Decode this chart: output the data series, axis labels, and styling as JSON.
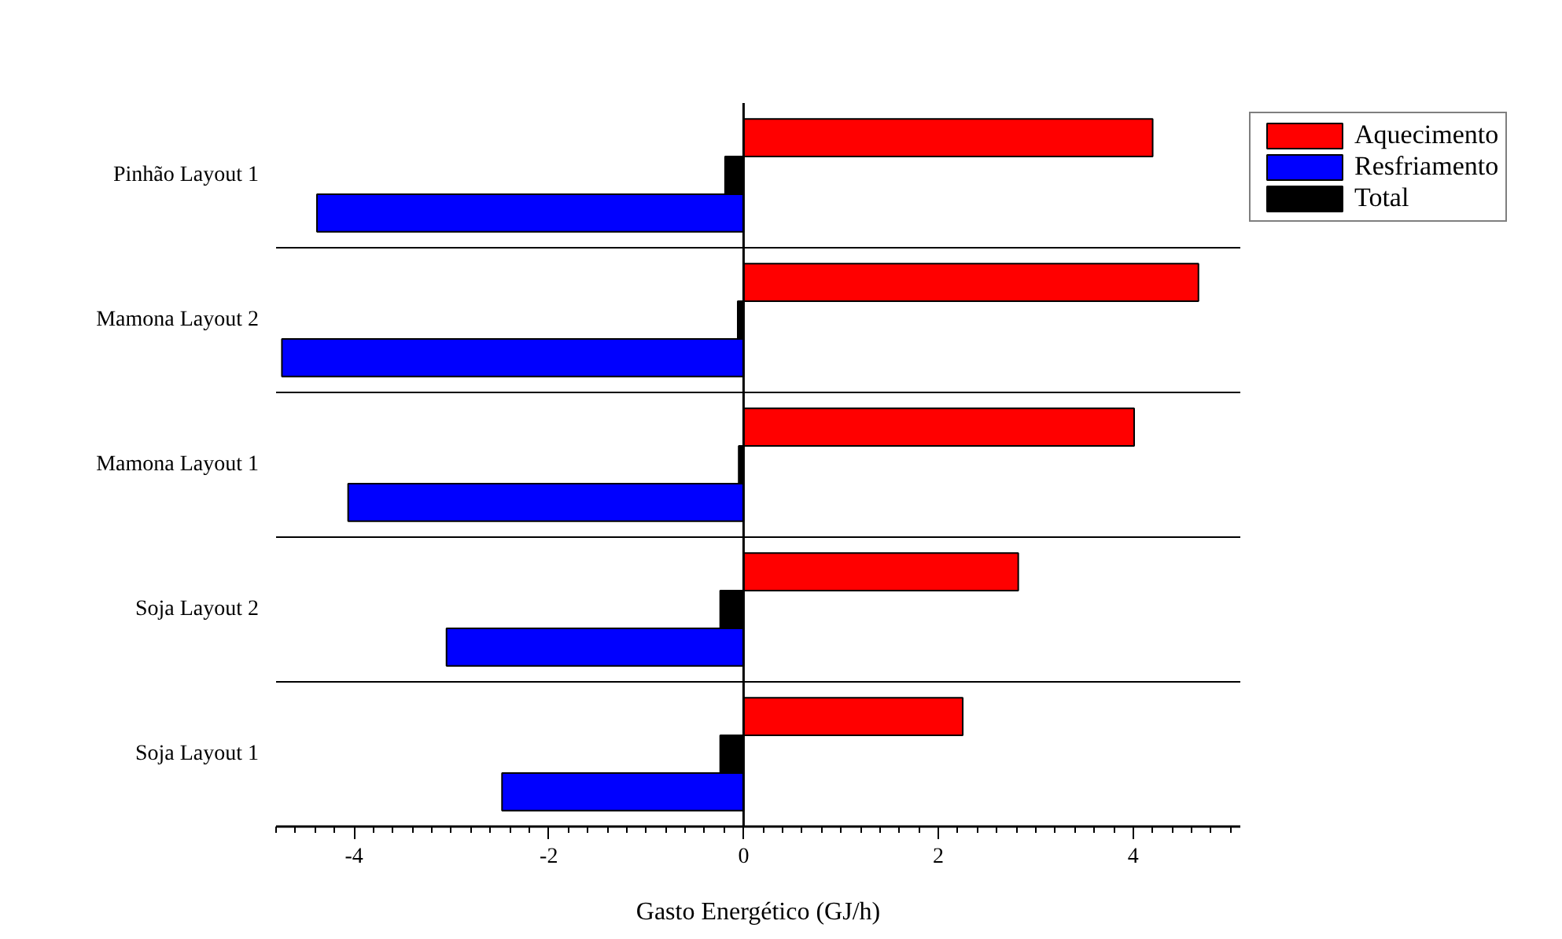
{
  "chart_data": {
    "type": "bar",
    "orientation": "horizontal",
    "xlabel": "Gasto Energético (GJ/h)",
    "categories": [
      "Pinhão Layout 1",
      "Mamona Layout 2",
      "Mamona Layout 1",
      "Soja Layout 2",
      "Soja Layout 1"
    ],
    "series": [
      {
        "name": "Aquecimento",
        "color": "#ff0000",
        "values": [
          4.2,
          4.67,
          4.01,
          2.82,
          2.25
        ]
      },
      {
        "name": "Resfriamento",
        "color": "#0000ff",
        "values": [
          -4.38,
          -4.74,
          -4.06,
          -3.05,
          -2.48
        ]
      },
      {
        "name": "Total",
        "color": "#000000",
        "values": [
          -0.19,
          -0.06,
          -0.05,
          -0.24,
          -0.24
        ]
      }
    ],
    "xlim": [
      -4.8,
      5.1
    ],
    "xticks": [
      -4,
      -2,
      0,
      2,
      4
    ],
    "grid": "y",
    "legend": "top right"
  }
}
